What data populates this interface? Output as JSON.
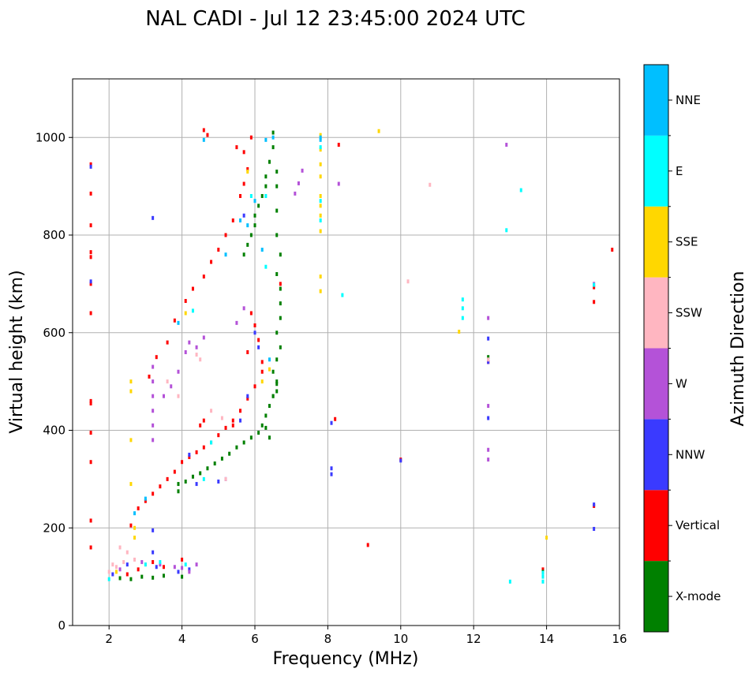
{
  "chart_data": {
    "type": "scatter",
    "title": "NAL CADI - Jul 12 23:45:00 2024 UTC",
    "xlabel": "Frequency (MHz)",
    "ylabel": "Virtual height (km)",
    "xlim": [
      1,
      16
    ],
    "ylim": [
      0,
      1120
    ],
    "xticks": [
      2,
      4,
      6,
      8,
      10,
      12,
      14,
      16
    ],
    "yticks": [
      0,
      200,
      400,
      600,
      800,
      1000
    ],
    "grid": true,
    "colorbar": {
      "label": "Azimuth Direction",
      "categories": [
        {
          "name": "X-mode",
          "color": "#008000"
        },
        {
          "name": "Vertical",
          "color": "#ff0000"
        },
        {
          "name": "NNW",
          "color": "#3a3aff"
        },
        {
          "name": "W",
          "color": "#b452d8"
        },
        {
          "name": "SSW",
          "color": "#ffb6c1"
        },
        {
          "name": "SSE",
          "color": "#ffd700"
        },
        {
          "name": "E",
          "color": "#00ffff"
        },
        {
          "name": "NNE",
          "color": "#00bfff"
        }
      ]
    },
    "series": [
      {
        "name": "Vertical",
        "points": [
          [
            1.5,
            945
          ],
          [
            1.5,
            885
          ],
          [
            1.5,
            820
          ],
          [
            1.5,
            765
          ],
          [
            1.5,
            755
          ],
          [
            1.5,
            700
          ],
          [
            1.5,
            640
          ],
          [
            1.5,
            460
          ],
          [
            1.5,
            455
          ],
          [
            1.5,
            395
          ],
          [
            1.5,
            335
          ],
          [
            1.5,
            215
          ],
          [
            1.5,
            160
          ],
          [
            2.6,
            205
          ],
          [
            2.8,
            240
          ],
          [
            3.0,
            255
          ],
          [
            3.2,
            270
          ],
          [
            3.4,
            285
          ],
          [
            3.6,
            300
          ],
          [
            3.8,
            315
          ],
          [
            4.0,
            335
          ],
          [
            4.2,
            345
          ],
          [
            4.4,
            355
          ],
          [
            4.6,
            365
          ],
          [
            4.8,
            375
          ],
          [
            5.0,
            390
          ],
          [
            5.2,
            405
          ],
          [
            5.4,
            420
          ],
          [
            5.6,
            440
          ],
          [
            5.8,
            465
          ],
          [
            6.0,
            490
          ],
          [
            6.2,
            520
          ],
          [
            3.1,
            510
          ],
          [
            3.3,
            550
          ],
          [
            3.6,
            580
          ],
          [
            3.8,
            625
          ],
          [
            4.1,
            665
          ],
          [
            4.3,
            690
          ],
          [
            4.6,
            715
          ],
          [
            4.8,
            745
          ],
          [
            5.0,
            770
          ],
          [
            5.2,
            800
          ],
          [
            5.4,
            830
          ],
          [
            5.6,
            880
          ],
          [
            5.8,
            935
          ],
          [
            5.7,
            970
          ],
          [
            5.9,
            1000
          ],
          [
            4.7,
            1005
          ],
          [
            4.6,
            1015
          ],
          [
            5.5,
            980
          ],
          [
            5.7,
            905
          ],
          [
            5.9,
            640
          ],
          [
            6.0,
            615
          ],
          [
            6.1,
            585
          ],
          [
            5.8,
            560
          ],
          [
            6.2,
            540
          ],
          [
            6.7,
            700
          ],
          [
            4.6,
            420
          ],
          [
            4.5,
            410
          ],
          [
            2.5,
            105
          ],
          [
            2.8,
            115
          ],
          [
            3.2,
            130
          ],
          [
            3.5,
            120
          ],
          [
            4.0,
            135
          ],
          [
            5.4,
            410
          ],
          [
            8.3,
            985
          ],
          [
            8.2,
            423
          ],
          [
            9.1,
            165
          ],
          [
            10.0,
            340
          ],
          [
            15.3,
            693
          ],
          [
            15.3,
            663
          ],
          [
            15.8,
            770
          ],
          [
            15.3,
            245
          ],
          [
            13.9,
            115
          ],
          [
            12.4,
            540
          ]
        ]
      },
      {
        "name": "X-mode",
        "points": [
          [
            6.5,
            1010
          ],
          [
            6.5,
            980
          ],
          [
            6.4,
            950
          ],
          [
            6.3,
            920
          ],
          [
            6.3,
            900
          ],
          [
            6.2,
            880
          ],
          [
            6.1,
            860
          ],
          [
            6.0,
            840
          ],
          [
            6.0,
            820
          ],
          [
            5.9,
            800
          ],
          [
            5.8,
            780
          ],
          [
            5.7,
            760
          ],
          [
            6.6,
            930
          ],
          [
            6.6,
            900
          ],
          [
            6.6,
            850
          ],
          [
            6.6,
            800
          ],
          [
            6.7,
            760
          ],
          [
            6.6,
            720
          ],
          [
            6.7,
            690
          ],
          [
            6.7,
            660
          ],
          [
            6.7,
            630
          ],
          [
            6.6,
            600
          ],
          [
            6.7,
            570
          ],
          [
            6.6,
            545
          ],
          [
            6.5,
            520
          ],
          [
            6.6,
            495
          ],
          [
            6.5,
            470
          ],
          [
            6.4,
            450
          ],
          [
            6.3,
            430
          ],
          [
            6.2,
            410
          ],
          [
            6.1,
            395
          ],
          [
            5.9,
            385
          ],
          [
            5.7,
            375
          ],
          [
            5.5,
            365
          ],
          [
            5.3,
            352
          ],
          [
            5.1,
            342
          ],
          [
            4.9,
            332
          ],
          [
            4.7,
            322
          ],
          [
            4.5,
            312
          ],
          [
            4.3,
            305
          ],
          [
            4.1,
            295
          ],
          [
            3.9,
            290
          ],
          [
            6.3,
            405
          ],
          [
            6.4,
            385
          ],
          [
            6.5,
            470
          ],
          [
            6.6,
            500
          ],
          [
            6.6,
            480
          ],
          [
            2.6,
            95
          ],
          [
            2.9,
            100
          ],
          [
            3.2,
            98
          ],
          [
            2.3,
            97
          ],
          [
            3.5,
            102
          ],
          [
            4.0,
            100
          ],
          [
            12.4,
            550
          ],
          [
            13.9,
            110
          ],
          [
            3.9,
            275
          ]
        ]
      },
      {
        "name": "NNW",
        "points": [
          [
            1.5,
            705
          ],
          [
            1.5,
            940
          ],
          [
            3.2,
            835
          ],
          [
            3.2,
            150
          ],
          [
            3.2,
            195
          ],
          [
            4.2,
            350
          ],
          [
            4.4,
            290
          ],
          [
            5.0,
            295
          ],
          [
            5.2,
            300
          ],
          [
            5.7,
            840
          ],
          [
            6.0,
            600
          ],
          [
            6.1,
            570
          ],
          [
            5.6,
            420
          ],
          [
            5.8,
            470
          ],
          [
            8.1,
            322
          ],
          [
            8.1,
            310
          ],
          [
            8.1,
            415
          ],
          [
            10.0,
            338
          ],
          [
            12.4,
            425
          ],
          [
            12.4,
            540
          ],
          [
            12.4,
            588
          ],
          [
            15.3,
            248
          ],
          [
            15.3,
            198
          ],
          [
            2.1,
            105
          ],
          [
            2.5,
            125
          ],
          [
            3.3,
            120
          ],
          [
            3.9,
            110
          ],
          [
            4.2,
            115
          ]
        ]
      },
      {
        "name": "W",
        "points": [
          [
            3.2,
            530
          ],
          [
            3.2,
            500
          ],
          [
            3.2,
            470
          ],
          [
            3.2,
            440
          ],
          [
            3.2,
            410
          ],
          [
            3.2,
            380
          ],
          [
            3.5,
            470
          ],
          [
            3.7,
            490
          ],
          [
            3.9,
            520
          ],
          [
            4.1,
            560
          ],
          [
            4.2,
            580
          ],
          [
            4.4,
            570
          ],
          [
            4.6,
            590
          ],
          [
            5.5,
            620
          ],
          [
            5.7,
            650
          ],
          [
            7.3,
            932
          ],
          [
            7.2,
            906
          ],
          [
            7.1,
            885
          ],
          [
            8.3,
            905
          ],
          [
            12.4,
            630
          ],
          [
            12.4,
            450
          ],
          [
            12.4,
            360
          ],
          [
            12.4,
            340
          ],
          [
            12.9,
            985
          ],
          [
            15.3,
            700
          ],
          [
            2.3,
            115
          ],
          [
            2.9,
            130
          ],
          [
            3.4,
            125
          ],
          [
            3.8,
            120
          ],
          [
            4.0,
            118
          ],
          [
            4.2,
            110
          ],
          [
            4.4,
            125
          ]
        ]
      },
      {
        "name": "SSW",
        "points": [
          [
            2.3,
            160
          ],
          [
            2.4,
            130
          ],
          [
            2.2,
            120
          ],
          [
            2.5,
            150
          ],
          [
            2.0,
            110
          ],
          [
            2.1,
            125
          ],
          [
            2.7,
            135
          ],
          [
            3.0,
            125
          ],
          [
            3.6,
            500
          ],
          [
            3.9,
            470
          ],
          [
            4.4,
            555
          ],
          [
            4.5,
            545
          ],
          [
            5.2,
            300
          ],
          [
            10.8,
            903
          ],
          [
            10.2,
            705
          ],
          [
            12.4,
            545
          ],
          [
            5.1,
            425
          ],
          [
            4.8,
            440
          ]
        ]
      },
      {
        "name": "SSE",
        "points": [
          [
            7.8,
            1005
          ],
          [
            7.8,
            975
          ],
          [
            7.8,
            945
          ],
          [
            7.8,
            920
          ],
          [
            7.8,
            880
          ],
          [
            7.8,
            860
          ],
          [
            7.8,
            840
          ],
          [
            7.8,
            808
          ],
          [
            7.8,
            715
          ],
          [
            7.8,
            685
          ],
          [
            9.4,
            1013
          ],
          [
            2.6,
            500
          ],
          [
            2.6,
            480
          ],
          [
            2.6,
            380
          ],
          [
            2.6,
            290
          ],
          [
            2.7,
            200
          ],
          [
            2.7,
            180
          ],
          [
            6.2,
            500
          ],
          [
            5.8,
            930
          ],
          [
            11.6,
            602
          ],
          [
            14.0,
            180
          ],
          [
            6.4,
            525
          ],
          [
            2.2,
            110
          ],
          [
            4.1,
            640
          ]
        ]
      },
      {
        "name": "E",
        "points": [
          [
            7.8,
            980
          ],
          [
            7.8,
            870
          ],
          [
            7.8,
            830
          ],
          [
            8.4,
            677
          ],
          [
            11.7,
            668
          ],
          [
            11.7,
            650
          ],
          [
            11.7,
            630
          ],
          [
            12.9,
            810
          ],
          [
            13.3,
            892
          ],
          [
            13.0,
            90
          ],
          [
            13.9,
            90
          ],
          [
            13.9,
            100
          ],
          [
            13.9,
            108
          ],
          [
            15.3,
            698
          ],
          [
            4.8,
            375
          ],
          [
            4.3,
            645
          ],
          [
            2.0,
            95
          ],
          [
            3.0,
            125
          ],
          [
            3.4,
            130
          ],
          [
            4.1,
            125
          ],
          [
            4.6,
            300
          ],
          [
            5.9,
            880
          ],
          [
            6.3,
            880
          ],
          [
            6.3,
            735
          ]
        ]
      },
      {
        "name": "NNE",
        "points": [
          [
            7.8,
            1000
          ],
          [
            7.8,
            995
          ],
          [
            4.6,
            995
          ],
          [
            6.3,
            995
          ],
          [
            6.5,
            1000
          ],
          [
            3.9,
            620
          ],
          [
            5.2,
            760
          ],
          [
            5.6,
            830
          ],
          [
            6.4,
            545
          ],
          [
            5.8,
            820
          ],
          [
            6.0,
            870
          ],
          [
            6.2,
            770
          ],
          [
            3.0,
            260
          ],
          [
            2.7,
            230
          ]
        ]
      }
    ]
  }
}
